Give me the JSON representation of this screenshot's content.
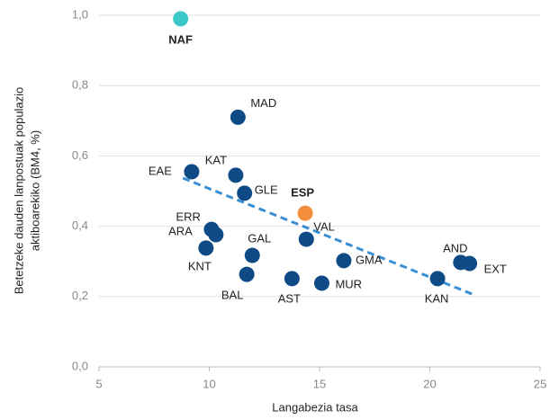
{
  "chart_data": {
    "type": "scatter",
    "xlabel": "Langabezia tasa",
    "ylabel": [
      "Betetzeke dauden lanpostuak populazio",
      "aktiboarekiko (BM4, %)"
    ],
    "xlim": [
      5,
      25
    ],
    "xticks": [
      5,
      10,
      15,
      20,
      25
    ],
    "ylim": [
      0,
      1
    ],
    "yticks": [
      {
        "value": 0,
        "label": "0,0"
      },
      {
        "value": 0.2,
        "label": "0,2"
      },
      {
        "value": 0.4,
        "label": "0,4"
      },
      {
        "value": 0.6,
        "label": "0,6"
      },
      {
        "value": 0.8,
        "label": "0,8"
      },
      {
        "value": 1,
        "label": "1,0"
      }
    ],
    "grid": true,
    "points": [
      {
        "label": "NAF",
        "x": 8.7,
        "y": 0.99,
        "color": "#3cc8c8",
        "bold": true
      },
      {
        "label": "MAD",
        "x": 11.3,
        "y": 0.71,
        "color": "#0d4a86"
      },
      {
        "label": "EAE",
        "x": 9.2,
        "y": 0.555,
        "color": "#0d4a86"
      },
      {
        "label": "KAT",
        "x": 11.2,
        "y": 0.545,
        "color": "#0d4a86"
      },
      {
        "label": "GLE",
        "x": 11.6,
        "y": 0.494,
        "color": "#0d4a86"
      },
      {
        "label": "ESP",
        "x": 14.35,
        "y": 0.437,
        "color": "#f28e3b",
        "bold": true
      },
      {
        "label": "ERR",
        "x": 10.1,
        "y": 0.391,
        "color": "#0d4a86"
      },
      {
        "label": "ARA",
        "x": 10.3,
        "y": 0.376,
        "color": "#0d4a86"
      },
      {
        "label": "VAL",
        "x": 14.4,
        "y": 0.363,
        "color": "#0d4a86"
      },
      {
        "label": "KNT",
        "x": 9.85,
        "y": 0.338,
        "color": "#0d4a86"
      },
      {
        "label": "GAL",
        "x": 11.95,
        "y": 0.317,
        "color": "#0d4a86"
      },
      {
        "label": "GMA",
        "x": 16.1,
        "y": 0.302,
        "color": "#0d4a86"
      },
      {
        "label": "AND",
        "x": 21.4,
        "y": 0.297,
        "color": "#0d4a86"
      },
      {
        "label": "EXT",
        "x": 21.8,
        "y": 0.294,
        "color": "#0d4a86"
      },
      {
        "label": "BAL",
        "x": 11.7,
        "y": 0.263,
        "color": "#0d4a86"
      },
      {
        "label": "AST",
        "x": 13.75,
        "y": 0.251,
        "color": "#0d4a86"
      },
      {
        "label": "KAN",
        "x": 20.35,
        "y": 0.251,
        "color": "#0d4a86"
      },
      {
        "label": "MUR",
        "x": 15.1,
        "y": 0.238,
        "color": "#0d4a86"
      }
    ],
    "trendline": {
      "x": [
        8.8,
        22.0
      ],
      "y": [
        0.537,
        0.205
      ],
      "color": "#3a8fd4"
    }
  }
}
